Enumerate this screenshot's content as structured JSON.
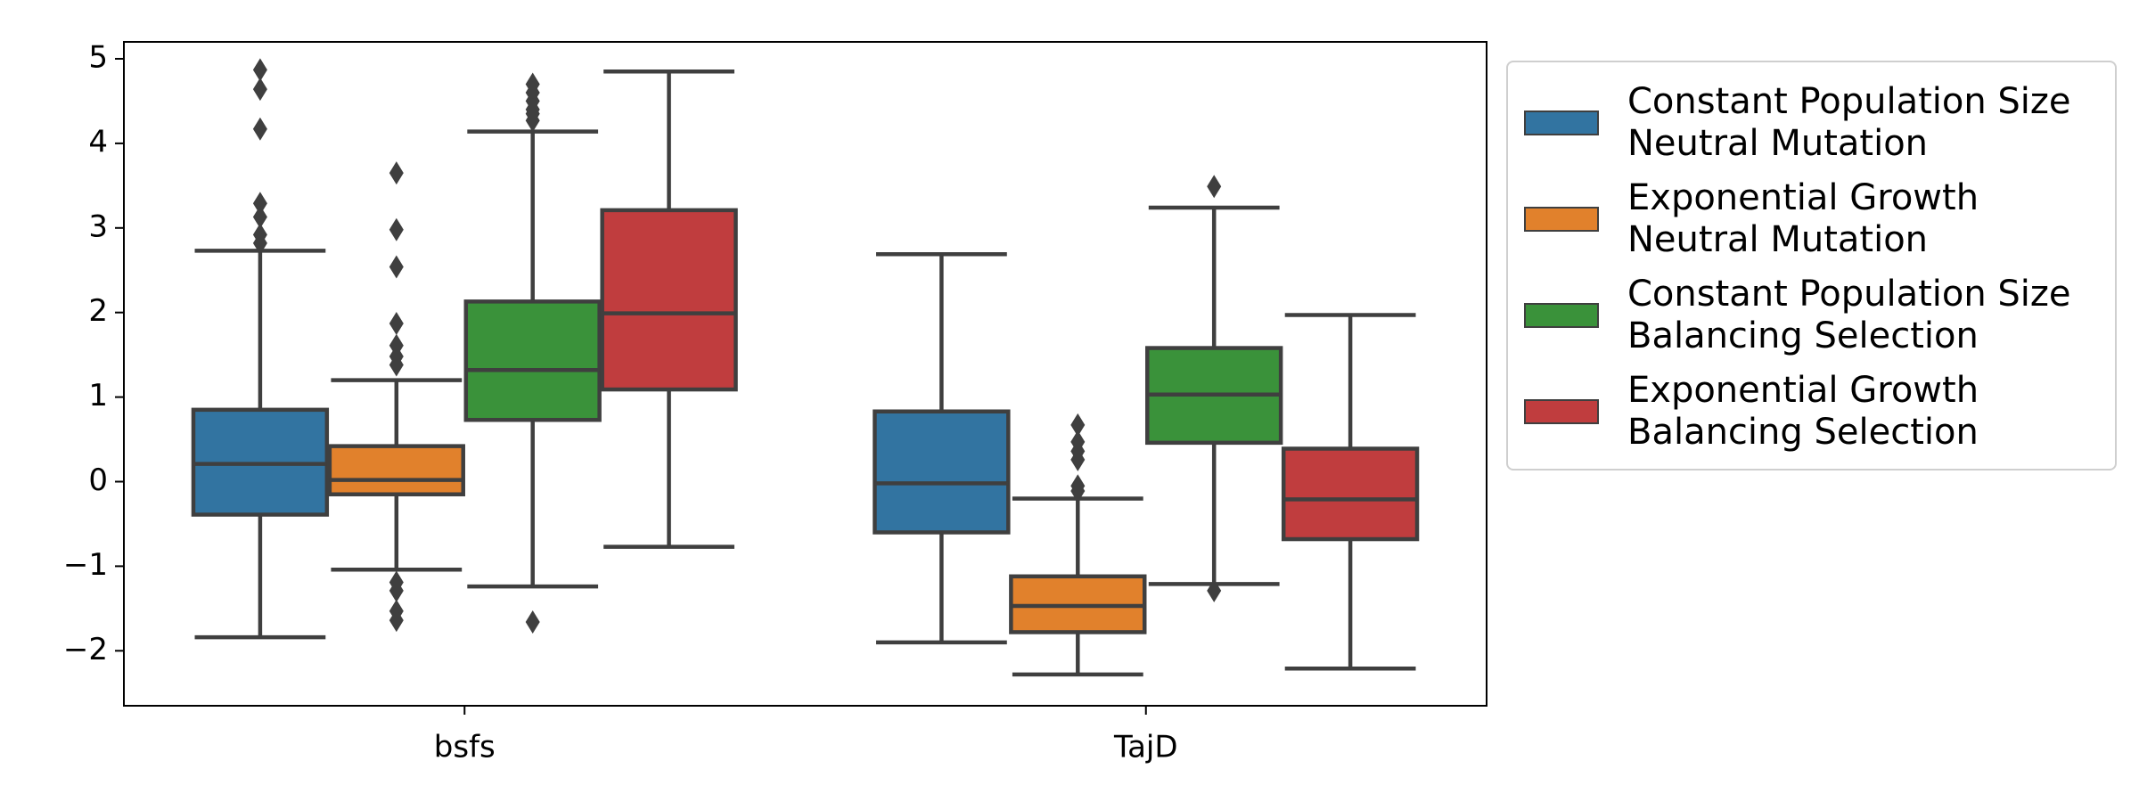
{
  "chart_data": {
    "type": "box",
    "categories": [
      "bsfs",
      "TajD"
    ],
    "ylim": [
      -2.65,
      5.2
    ],
    "yticks": [
      {
        "value": -2,
        "label": "−2"
      },
      {
        "value": -1,
        "label": "−1"
      },
      0,
      1,
      2,
      3,
      4,
      5
    ],
    "legend": "upper left outside",
    "series": [
      {
        "name": "Constant Population Size\nNeutral Mutation",
        "color": "#3274a1",
        "values": [
          {
            "whislo": -1.84,
            "q1": -0.39,
            "med": 0.21,
            "q3": 0.85,
            "whishi": 2.73,
            "fliers": [
              4.87,
              4.64,
              4.17,
              3.29,
              3.13,
              2.92,
              2.82
            ]
          },
          {
            "whislo": -1.9,
            "q1": -0.6,
            "med": -0.02,
            "q3": 0.83,
            "whishi": 2.69,
            "fliers": []
          }
        ]
      },
      {
        "name": "Exponential Growth\nNeutral Mutation",
        "color": "#e1812c",
        "values": [
          {
            "whislo": -1.04,
            "q1": -0.15,
            "med": 0.02,
            "q3": 0.42,
            "whishi": 1.2,
            "fliers": [
              3.65,
              2.98,
              2.54,
              1.87,
              1.61,
              1.48,
              1.38,
              -1.19,
              -1.29,
              -1.53,
              -1.64
            ]
          },
          {
            "whislo": -2.28,
            "q1": -1.78,
            "med": -1.47,
            "q3": -1.12,
            "whishi": -0.2,
            "fliers": [
              0.67,
              0.47,
              0.36,
              0.26,
              -0.05,
              -0.11
            ]
          }
        ]
      },
      {
        "name": "Constant Population Size\nBalancing Selection",
        "color": "#3a923a",
        "values": [
          {
            "whislo": -1.24,
            "q1": 0.73,
            "med": 1.32,
            "q3": 2.13,
            "whishi": 4.14,
            "fliers": [
              4.7,
              4.6,
              4.5,
              4.4,
              4.35,
              4.27,
              -1.66
            ]
          },
          {
            "whislo": -1.21,
            "q1": 0.46,
            "med": 1.03,
            "q3": 1.58,
            "whishi": 3.24,
            "fliers": [
              3.49,
              -1.29
            ]
          }
        ]
      },
      {
        "name": "Exponential Growth\nBalancing Selection",
        "color": "#c03d3e",
        "values": [
          {
            "whislo": -0.77,
            "q1": 1.09,
            "med": 1.99,
            "q3": 3.21,
            "whishi": 4.85,
            "fliers": []
          },
          {
            "whislo": -2.21,
            "q1": -0.68,
            "med": -0.21,
            "q3": 0.39,
            "whishi": 1.97,
            "fliers": []
          }
        ]
      }
    ]
  }
}
